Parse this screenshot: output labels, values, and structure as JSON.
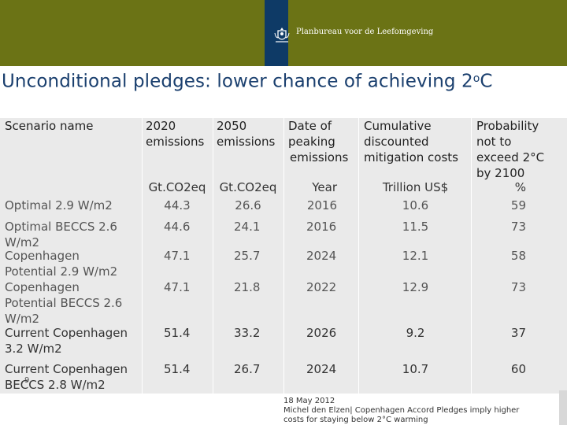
{
  "header": {
    "organization": "Planbureau voor de Leefomgeving",
    "colors": {
      "band": "#6b7315",
      "logo_block": "#0e3a66",
      "title": "#1a3f6e",
      "table_bg": "#eaeaea"
    },
    "logo_icon": "coat-of-arms-icon"
  },
  "title": {
    "text": "Unconditional pledges: lower chance of achieving 2",
    "superscript": "o",
    "suffix": "C"
  },
  "table": {
    "headers": {
      "scenario": "Scenario name",
      "c2020": [
        "2020",
        "emissions"
      ],
      "c2050": [
        "2050",
        "emissions"
      ],
      "peak": [
        "Date of",
        "peaking",
        "emissions"
      ],
      "cost": [
        "Cumulative",
        "discounted",
        "mitigation costs"
      ],
      "prob": [
        "Probability",
        "not to",
        "exceed 2°C",
        "by 2100"
      ]
    },
    "units": [
      "Gt.CO2eq",
      "Gt.CO2eq",
      "Year",
      "Trillion US$",
      "%"
    ],
    "rows": [
      {
        "name": [
          "Optimal 2.9 W/m2"
        ],
        "e2020": "44.3",
        "e2050": "26.6",
        "peak": "2016",
        "cost": "10.6",
        "prob": "59"
      },
      {
        "name": [
          "Optimal BECCS 2.6",
          "W/m2"
        ],
        "e2020": "44.6",
        "e2050": "24.1",
        "peak": "2016",
        "cost": "11.5",
        "prob": "73"
      },
      {
        "name": [
          "Copenhagen",
          "Potential 2.9 W/m2"
        ],
        "e2020": "47.1",
        "e2050": "25.7",
        "peak": "2024",
        "cost": "12.1",
        "prob": "58"
      },
      {
        "name": [
          "Copenhagen",
          "Potential BECCS 2.6",
          "W/m2"
        ],
        "e2020": "47.1",
        "e2050": "21.8",
        "peak": "2022",
        "cost": "12.9",
        "prob": "73"
      },
      {
        "name": [
          "Current Copenhagen",
          "3.2 W/m2"
        ],
        "e2020": "51.4",
        "e2050": "33.2",
        "peak": "2026",
        "cost": "9.2",
        "prob": "37"
      },
      {
        "name": [
          "Current Copenhagen",
          "BECCS 2.8 W/m2"
        ],
        "e2020": "51.4",
        "e2050": "26.7",
        "peak": "2024",
        "cost": "10.7",
        "prob": "60"
      }
    ]
  },
  "footer": {
    "page_number": "9",
    "date": "18 May 2012",
    "author_line": "Michel den Elzen| Copenhagen Accord Pledges imply higher",
    "subtitle_line": "costs for staying below 2°C warming"
  }
}
